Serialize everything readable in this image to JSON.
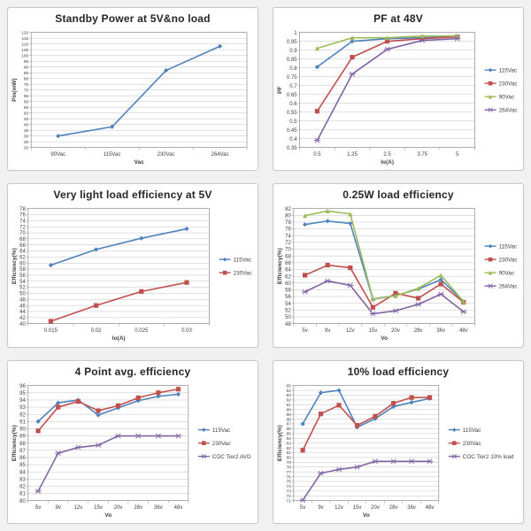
{
  "page": {
    "background": "#f1f1f1",
    "card_background": "#ffffff",
    "card_border": "#c9c9c9"
  },
  "palette": {
    "blue": "#4F81BD",
    "red": "#C0504D",
    "green": "#9BBB59",
    "purple": "#8064A2",
    "grid": "#c3c3c3",
    "axis": "#8c8c8c",
    "tick_text": "#404040",
    "title_text": "#262626"
  },
  "chart_data": [
    {
      "type": "line",
      "title": "Standby Power at 5V&no load",
      "xlabel": "Vac",
      "ylabel": "Pin(mW)",
      "categories": [
        "90Vac",
        "115Vac",
        "230Vac",
        "264Vac"
      ],
      "ylim": [
        20,
        120
      ],
      "ystep": 5,
      "grid": true,
      "legend_position": "none",
      "series": [
        {
          "color": "blue",
          "marker": "diamond",
          "values": [
            30,
            38,
            87,
            108
          ]
        }
      ]
    },
    {
      "type": "line",
      "title": "PF at 48V",
      "xlabel": "Io(A)",
      "ylabel": "PF",
      "categories": [
        "0.5",
        "1.25",
        "2.5",
        "3.75",
        "5"
      ],
      "ylim": [
        0.35,
        1
      ],
      "ystep": 0.05,
      "grid": true,
      "legend_position": "right",
      "series": [
        {
          "name": "115Vac",
          "color": "blue",
          "marker": "diamond",
          "values": [
            0.805,
            0.95,
            0.965,
            0.97,
            0.975
          ]
        },
        {
          "name": "230Vac",
          "color": "red",
          "marker": "square",
          "values": [
            0.555,
            0.86,
            0.95,
            0.965,
            0.975
          ]
        },
        {
          "name": "90Vac",
          "color": "green",
          "marker": "triangle",
          "values": [
            0.91,
            0.97,
            0.97,
            0.98,
            0.98
          ]
        },
        {
          "name": "264Vac",
          "color": "purple",
          "marker": "x",
          "values": [
            0.39,
            0.765,
            0.905,
            0.955,
            0.965
          ]
        }
      ]
    },
    {
      "type": "line",
      "title": "Very light load efficiency at 5V",
      "xlabel": "Io(A)",
      "ylabel": "Efficiency(%)",
      "categories": [
        "0.015",
        "0.02",
        "0.025",
        "0.03"
      ],
      "ylim": [
        40,
        78
      ],
      "ystep": 2,
      "grid": true,
      "legend_position": "right",
      "series": [
        {
          "name": "115Vac",
          "color": "blue",
          "marker": "diamond",
          "values": [
            59.3,
            64.5,
            68.2,
            71.3
          ]
        },
        {
          "name": "230Vac",
          "color": "red",
          "marker": "square",
          "values": [
            40.8,
            46,
            50.6,
            53.6
          ]
        }
      ]
    },
    {
      "type": "line",
      "title": "0.25W load efficiency",
      "xlabel": "Vo",
      "ylabel": "Efficiency(%)",
      "categories": [
        "5v",
        "9v",
        "12v",
        "15v",
        "20v",
        "28v",
        "36v",
        "48v"
      ],
      "ylim": [
        48,
        82
      ],
      "ystep": 2,
      "grid": true,
      "legend_position": "right",
      "series": [
        {
          "name": "115Vac",
          "color": "blue",
          "marker": "diamond",
          "values": [
            77.3,
            78.3,
            77.6,
            55.2,
            56.3,
            58.2,
            61,
            54.6
          ]
        },
        {
          "name": "230Vac",
          "color": "red",
          "marker": "square",
          "values": [
            62.3,
            65.3,
            64.5,
            52.8,
            57,
            55.5,
            59.7,
            54.3
          ]
        },
        {
          "name": "90Vac",
          "color": "green",
          "marker": "triangle",
          "values": [
            79.9,
            81.3,
            80.4,
            55.3,
            56.2,
            58.4,
            62.3,
            54.5
          ]
        },
        {
          "name": "264Vac",
          "color": "purple",
          "marker": "x",
          "values": [
            57.4,
            60.6,
            59.3,
            50.9,
            51.8,
            53.7,
            56.7,
            51.5
          ]
        }
      ]
    },
    {
      "type": "line",
      "title": "4 Point avg. efficiency",
      "xlabel": "Vo",
      "ylabel": "Efficiency(%)",
      "categories": [
        "5v",
        "9v",
        "12v",
        "15v",
        "20v",
        "28v",
        "36v",
        "48v"
      ],
      "ylim": [
        80,
        96
      ],
      "ystep": 1,
      "grid": true,
      "legend_position": "right",
      "series": [
        {
          "name": "115Vac",
          "color": "blue",
          "marker": "diamond",
          "values": [
            91,
            93.6,
            94,
            91.9,
            92.9,
            93.9,
            94.5,
            94.8
          ]
        },
        {
          "name": "230Vac",
          "color": "red",
          "marker": "square",
          "values": [
            89.7,
            93,
            93.8,
            92.5,
            93.2,
            94.3,
            95,
            95.5
          ]
        },
        {
          "name": "COC Tier2 AVG",
          "color": "purple",
          "marker": "x",
          "values": [
            81.3,
            86.6,
            87.4,
            87.7,
            89,
            89,
            89,
            89
          ]
        }
      ]
    },
    {
      "type": "line",
      "title": "10% load efficiency",
      "xlabel": "Vo",
      "ylabel": "Efficiency(%)",
      "categories": [
        "5v",
        "9v",
        "12v",
        "15v",
        "20v",
        "28v",
        "36v",
        "48v"
      ],
      "ylim": [
        71,
        95
      ],
      "ystep": 1,
      "grid": true,
      "legend_position": "right",
      "series": [
        {
          "name": "115Vac",
          "color": "blue",
          "marker": "diamond",
          "values": [
            87,
            93.5,
            94,
            86.3,
            88.1,
            90.6,
            91.5,
            92.3
          ]
        },
        {
          "name": "230Vac",
          "color": "red",
          "marker": "square",
          "values": [
            81.5,
            89.1,
            90.9,
            86.7,
            88.6,
            91.3,
            92.5,
            92.5
          ]
        },
        {
          "name": "COC Tier2 10% load",
          "color": "purple",
          "marker": "x",
          "values": [
            71.1,
            76.7,
            77.5,
            78,
            79.2,
            79.2,
            79.2,
            79.2
          ]
        }
      ]
    }
  ]
}
